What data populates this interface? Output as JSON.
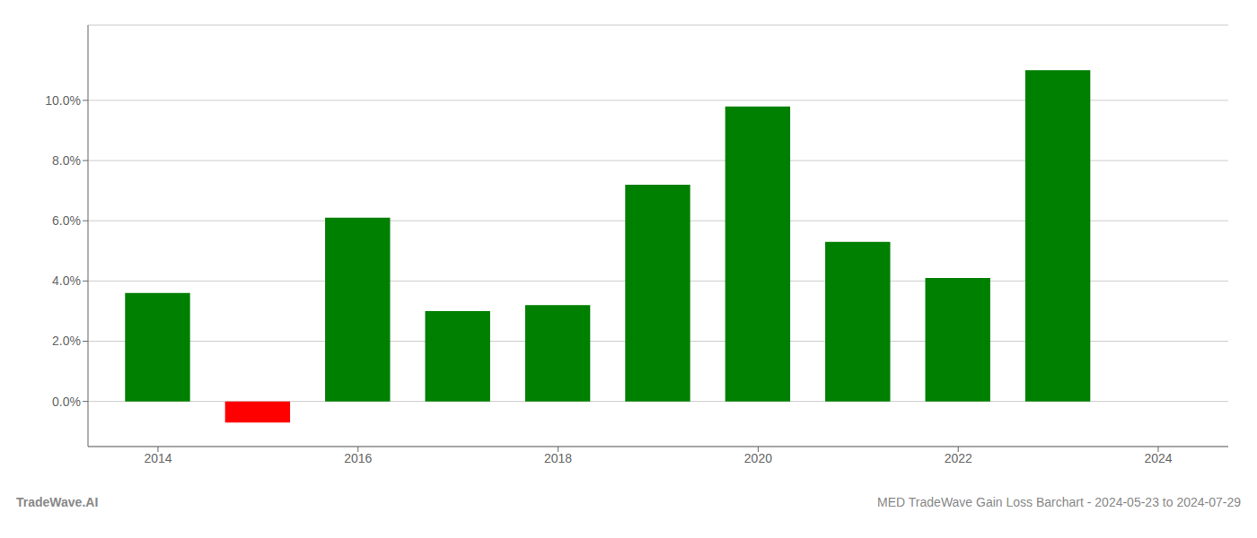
{
  "chart_data": {
    "type": "bar",
    "title": "MED TradeWave Gain Loss Barchart - 2024-05-23 to 2024-07-29",
    "annotations": [
      "TradeWave.AI"
    ],
    "x": [
      2014,
      2015,
      2016,
      2017,
      2018,
      2019,
      2020,
      2021,
      2022,
      2023
    ],
    "values": [
      0.036,
      -0.007,
      0.061,
      0.03,
      0.032,
      0.072,
      0.098,
      0.053,
      0.041,
      0.11
    ],
    "colors": [
      "#008000",
      "#ff0000",
      "#008000",
      "#008000",
      "#008000",
      "#008000",
      "#008000",
      "#008000",
      "#008000",
      "#008000"
    ],
    "xlim": [
      2013.3,
      2024.7
    ],
    "xticks": [
      2014,
      2016,
      2018,
      2020,
      2022,
      2024
    ],
    "ylim": [
      -0.015,
      0.125
    ],
    "yticks": [
      {
        "value": 0.0,
        "label": "0.0%"
      },
      {
        "value": 0.02,
        "label": "2.0%"
      },
      {
        "value": 0.04,
        "label": "4.0%"
      },
      {
        "value": 0.06,
        "label": "6.0%"
      },
      {
        "value": 0.08,
        "label": "8.0%"
      },
      {
        "value": 0.1,
        "label": "10.0%"
      }
    ],
    "grid": true
  }
}
